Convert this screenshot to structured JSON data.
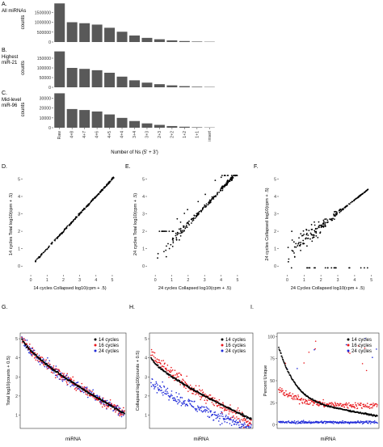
{
  "chart_data": [
    {
      "panel": "A.",
      "type": "bar",
      "side_label": [
        "All miRNAs"
      ],
      "ylabel": "counts",
      "ylim": [
        0,
        2000000
      ],
      "yticks": [
        "0",
        "500000",
        "1000000",
        "1500000"
      ],
      "ytick_values": [
        0,
        500000,
        1000000,
        1500000
      ],
      "categories": [
        "Raw",
        "4+8",
        "4+7",
        "4+6",
        "4+5",
        "4+4",
        "3+4",
        "3+3",
        "2+3",
        "2+2",
        "1+2",
        "1+1",
        "insert"
      ],
      "values": [
        1950000,
        1000000,
        950000,
        880000,
        720000,
        520000,
        330000,
        210000,
        140000,
        85000,
        50000,
        25000,
        15000
      ]
    },
    {
      "panel": "B.",
      "type": "bar",
      "side_label": [
        "Highest",
        "miR-21"
      ],
      "ylabel": "counts",
      "ylim": [
        0,
        200000
      ],
      "yticks": [
        "0",
        "50000",
        "100000",
        "150000"
      ],
      "ytick_values": [
        0,
        50000,
        100000,
        150000
      ],
      "categories": [
        "Raw",
        "4+8",
        "4+7",
        "4+6",
        "4+5",
        "4+4",
        "3+4",
        "3+3",
        "2+3",
        "2+2",
        "1+2",
        "1+1",
        "insert"
      ],
      "values": [
        185000,
        100000,
        95000,
        88000,
        75000,
        55000,
        36000,
        24000,
        16000,
        10000,
        6000,
        3000,
        1800
      ]
    },
    {
      "panel": "C.",
      "type": "bar",
      "side_label": [
        "Mid-level",
        "miR-96"
      ],
      "ylabel": "counts",
      "ylim": [
        0,
        37000
      ],
      "yticks": [
        "0",
        "10000",
        "20000",
        "30000"
      ],
      "ytick_values": [
        0,
        10000,
        20000,
        30000
      ],
      "xlabel": "Number of Ns (5' + 3')",
      "categories": [
        "Raw",
        "4+8",
        "4+7",
        "4+6",
        "4+5",
        "4+4",
        "3+4",
        "3+3",
        "2+3",
        "2+2",
        "1+2",
        "1+1",
        "insert"
      ],
      "values": [
        35000,
        19000,
        18000,
        16500,
        13500,
        10000,
        6800,
        4400,
        2900,
        1700,
        1000,
        500,
        300
      ]
    },
    {
      "panel": "D.",
      "type": "scatter",
      "xlabel": "14 cycles Collapsed log10(cpm + .5)",
      "ylabel": "14 cycles Total log10(cpm + .5)",
      "xlim": [
        -0.5,
        5.3
      ],
      "ylim": [
        -0.5,
        5.3
      ],
      "xticks": [
        0,
        1,
        2,
        3,
        4,
        5
      ],
      "yticks": [
        0,
        1,
        2,
        3,
        4,
        5
      ],
      "trend": "tight diagonal y = x",
      "color": "#000000"
    },
    {
      "panel": "E.",
      "type": "scatter",
      "xlabel": "24 cycles Collapsed log10(cpm + .5)",
      "ylabel": "24 cycles Total log10(cpm + .5)",
      "xlim": [
        -0.5,
        5.3
      ],
      "ylim": [
        -0.5,
        5.3
      ],
      "xticks": [
        0,
        1,
        2,
        3,
        4,
        5
      ],
      "yticks": [
        0,
        1,
        2,
        3,
        4,
        5
      ],
      "trend": "diagonal with spread below diagonal at low values; row at y = 2",
      "color": "#000000"
    },
    {
      "panel": "F.",
      "type": "scatter",
      "xlabel": "24 Cycles Collapsed log10(cpm + .5)",
      "ylabel": "24 cycles Collapsed log10(cpm + .5)",
      "xlim": [
        -0.5,
        5.3
      ],
      "ylim": [
        -0.5,
        5.3
      ],
      "xticks": [
        0,
        1,
        2,
        3,
        4,
        5
      ],
      "yticks": [
        0,
        1,
        2,
        3,
        4,
        5
      ],
      "trend": "diffuse cloud converging to diagonal at high values",
      "color": "#000000"
    },
    {
      "panel": "G.",
      "type": "scatter",
      "xlabel": "miRNA",
      "ylabel": "Total log10(counts + 0.5)",
      "ylim": [
        0.3,
        5.3
      ],
      "yticks": [
        1,
        2,
        3,
        4,
        5
      ],
      "series": [
        {
          "name": "14 cycles",
          "color": "#000000",
          "y_start": 5.0,
          "y_end": 1.1
        },
        {
          "name": "16 cycles",
          "color": "#e8161b",
          "y_start": 5.0,
          "y_end": 1.1
        },
        {
          "name": "24 cycles",
          "color": "#1f2ad8",
          "y_start": 5.0,
          "y_end": 1.1
        }
      ]
    },
    {
      "panel": "H.",
      "type": "scatter",
      "xlabel": "miRNA",
      "ylabel": "Collapsed log10(counts + 0.5)",
      "ylim": [
        0.3,
        5.3
      ],
      "yticks": [
        1,
        2,
        3,
        4,
        5
      ],
      "series": [
        {
          "name": "14 cycles",
          "color": "#000000",
          "y_start": 4.0,
          "y_end": 0.8
        },
        {
          "name": "16 cycles",
          "color": "#e8161b",
          "y_start": 4.3,
          "y_end": 0.6
        },
        {
          "name": "24 cycles",
          "color": "#1f2ad8",
          "y_start": 2.8,
          "y_end": 0.3
        }
      ]
    },
    {
      "panel": "I.",
      "type": "scatter",
      "xlabel": "miRNA",
      "ylabel": "Percent Unique",
      "ylim": [
        -4,
        104
      ],
      "yticks": [
        0,
        25,
        50,
        75,
        100
      ],
      "series": [
        {
          "name": "14 cycles",
          "color": "#000000",
          "y_start": 100,
          "y_end": 5
        },
        {
          "name": "16 cycles",
          "color": "#e8161b",
          "y_start": 45,
          "y_end": 20
        },
        {
          "name": "24 cycles",
          "color": "#1f2ad8",
          "y_start": 8,
          "y_end": 2
        }
      ]
    }
  ]
}
